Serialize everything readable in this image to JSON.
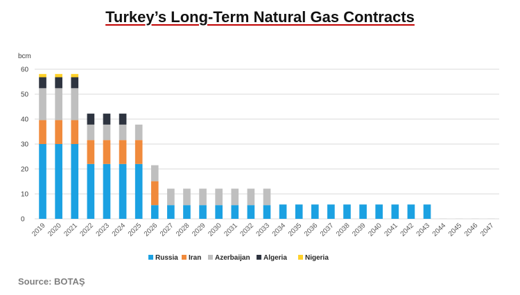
{
  "chart_data": {
    "type": "bar",
    "stacked": true,
    "title": "Turkey’s Long-Term Natural Gas Contracts",
    "ylabel": "bcm",
    "xlabel": "",
    "ylim": [
      0,
      60
    ],
    "yticks": [
      0,
      10,
      20,
      30,
      40,
      50,
      60
    ],
    "grid": true,
    "legend_position": "bottom",
    "categories": [
      "2019",
      "2020",
      "2021",
      "2022",
      "2023",
      "2024",
      "2025",
      "2026",
      "2027",
      "2028",
      "2029",
      "2030",
      "2031",
      "2032",
      "2033",
      "2034",
      "2035",
      "2036",
      "2037",
      "2038",
      "2039",
      "2040",
      "2041",
      "2042",
      "2043",
      "2044",
      "2045",
      "2046",
      "2047"
    ],
    "series": [
      {
        "name": "Russia",
        "color": "#1ba1e2",
        "values": [
          30,
          30,
          30,
          22,
          22,
          22,
          22,
          5.5,
          5.5,
          5.5,
          5.5,
          5.5,
          5.5,
          5.5,
          5.5,
          5.75,
          5.75,
          5.75,
          5.75,
          5.75,
          5.75,
          5.75,
          5.75,
          5.75,
          5.75,
          0,
          0,
          0,
          0
        ]
      },
      {
        "name": "Iran",
        "color": "#f08a3c",
        "values": [
          9.6,
          9.6,
          9.6,
          9.6,
          9.6,
          9.6,
          9.6,
          9.6,
          0,
          0,
          0,
          0,
          0,
          0,
          0,
          0,
          0,
          0,
          0,
          0,
          0,
          0,
          0,
          0,
          0,
          0,
          0,
          0,
          0
        ]
      },
      {
        "name": "Azerbaijan",
        "color": "#bfbfbf",
        "values": [
          12.8,
          12.8,
          12.8,
          6.2,
          6.2,
          6.2,
          6.2,
          6.4,
          6.6,
          6.6,
          6.6,
          6.6,
          6.6,
          6.6,
          6.6,
          0,
          0,
          0,
          0,
          0,
          0,
          0,
          0,
          0,
          0,
          0,
          0,
          0,
          0
        ]
      },
      {
        "name": "Algeria",
        "color": "#2e3440",
        "values": [
          4.4,
          4.4,
          4.4,
          4.4,
          4.4,
          4.4,
          0,
          0,
          0,
          0,
          0,
          0,
          0,
          0,
          0,
          0,
          0,
          0,
          0,
          0,
          0,
          0,
          0,
          0,
          0,
          0,
          0,
          0,
          0
        ]
      },
      {
        "name": "Nigeria",
        "color": "#ffd12a",
        "values": [
          1.3,
          1.3,
          1.3,
          0,
          0,
          0,
          0,
          0,
          0,
          0,
          0,
          0,
          0,
          0,
          0,
          0,
          0,
          0,
          0,
          0,
          0,
          0,
          0,
          0,
          0,
          0,
          0,
          0,
          0
        ]
      }
    ]
  },
  "source": "Source: BOTAŞ"
}
